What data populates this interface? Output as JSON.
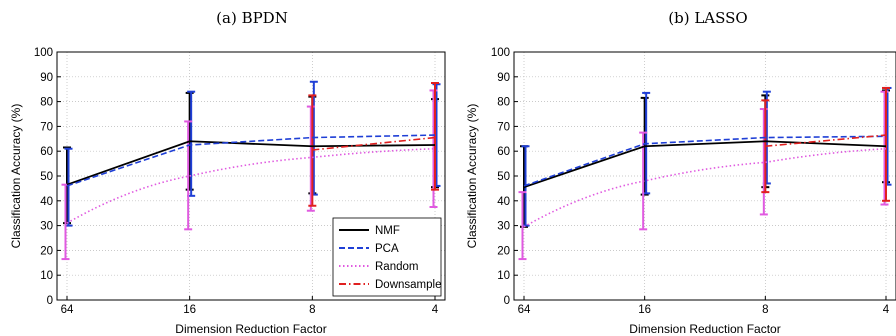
{
  "chart_data": [
    {
      "type": "line",
      "title": "(a) BPDN",
      "xlabel": "Dimension Reduction Factor",
      "ylabel": "Classification Accuracy (%)",
      "categories": [
        "64",
        "16",
        "8",
        "4"
      ],
      "ylim": [
        0,
        100
      ],
      "yticks": [
        "0",
        "10",
        "20",
        "30",
        "40",
        "50",
        "60",
        "70",
        "80",
        "90",
        "100"
      ],
      "grid": true,
      "legend": "bottom-right",
      "series": [
        {
          "name": "NMF",
          "color": "#000000",
          "dash": "solid",
          "points": [
            [
              64,
              46.5
            ],
            [
              16,
              64
            ],
            [
              8,
              62
            ],
            [
              4,
              62.5
            ]
          ],
          "error": [
            [
              64,
              31,
              61.5
            ],
            [
              16,
              44.5,
              83.5
            ],
            [
              8,
              43,
              82
            ],
            [
              4,
              45.5,
              81
            ]
          ]
        },
        {
          "name": "PCA",
          "color": "#1f3fd6",
          "dash": "dashed",
          "points": [
            [
              64,
              46
            ],
            [
              16,
              62.5
            ],
            [
              8,
              65.5
            ],
            [
              4,
              66.5
            ]
          ],
          "error": [
            [
              64,
              30,
              61
            ],
            [
              16,
              42,
              84
            ],
            [
              8,
              42.5,
              88
            ],
            [
              4,
              46,
              87
            ]
          ]
        },
        {
          "name": "Random",
          "color": "#e05ae0",
          "dash": "dotted",
          "points": [
            [
              64,
              31
            ],
            [
              16,
              50
            ],
            [
              8,
              57.5
            ],
            [
              4,
              61
            ]
          ],
          "error": [
            [
              64,
              16.5,
              46.5
            ],
            [
              16,
              28.5,
              72
            ],
            [
              8,
              36,
              78
            ],
            [
              4,
              37.5,
              84.5
            ]
          ]
        },
        {
          "name": "Downsample",
          "color": "#e02020",
          "dash": "dashdot",
          "points": [
            [
              8,
              60.5
            ],
            [
              4,
              65.5
            ]
          ],
          "error": [
            [
              8,
              38,
              82.5
            ],
            [
              4,
              44.5,
              87.5
            ]
          ]
        }
      ]
    },
    {
      "type": "line",
      "title": "(b) LASSO",
      "xlabel": "Dimension Reduction Factor",
      "ylabel": "Classification Accuracy (%)",
      "categories": [
        "64",
        "16",
        "8",
        "4"
      ],
      "ylim": [
        0,
        100
      ],
      "yticks": [
        "0",
        "10",
        "20",
        "30",
        "40",
        "50",
        "60",
        "70",
        "80",
        "90",
        "100"
      ],
      "grid": true,
      "legend": "",
      "series": [
        {
          "name": "NMF",
          "color": "#000000",
          "dash": "solid",
          "points": [
            [
              64,
              45.5
            ],
            [
              16,
              62
            ],
            [
              8,
              64
            ],
            [
              4,
              62
            ]
          ],
          "error": [
            [
              64,
              29.5,
              62
            ],
            [
              16,
              42.5,
              81.5
            ],
            [
              8,
              45.5,
              82.5
            ],
            [
              4,
              47.5,
              84.5
            ]
          ]
        },
        {
          "name": "PCA",
          "color": "#1f3fd6",
          "dash": "dashed",
          "points": [
            [
              64,
              46
            ],
            [
              16,
              63
            ],
            [
              8,
              65.5
            ],
            [
              4,
              66
            ]
          ],
          "error": [
            [
              64,
              30,
              62
            ],
            [
              16,
              43,
              83.5
            ],
            [
              8,
              47,
              84
            ],
            [
              4,
              46.5,
              85.5
            ]
          ]
        },
        {
          "name": "Random",
          "color": "#e05ae0",
          "dash": "dotted",
          "points": [
            [
              64,
              29.5
            ],
            [
              16,
              48
            ],
            [
              8,
              55.5
            ],
            [
              4,
              61
            ]
          ],
          "error": [
            [
              64,
              16.5,
              43.5
            ],
            [
              16,
              28.5,
              67.5
            ],
            [
              8,
              34.5,
              77
            ],
            [
              4,
              38.5,
              84
            ]
          ]
        },
        {
          "name": "Downsample",
          "color": "#e02020",
          "dash": "dashdot",
          "points": [
            [
              8,
              62
            ],
            [
              4,
              66.5
            ]
          ],
          "error": [
            [
              8,
              43.5,
              80.5
            ],
            [
              4,
              40,
              85.5
            ]
          ]
        }
      ]
    }
  ]
}
